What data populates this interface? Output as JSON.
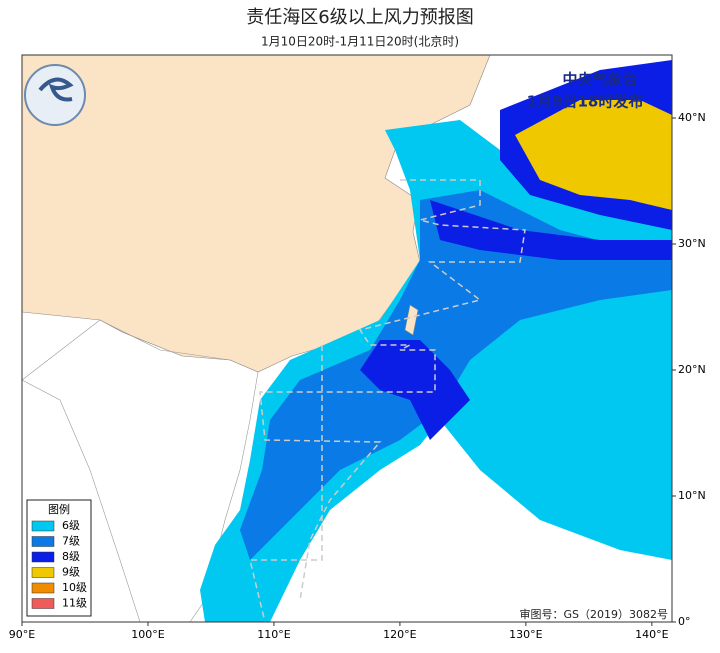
{
  "title": "责任海区6级以上风力预报图",
  "subtitle": "1月10日20时-1月11日20时(北京时)",
  "issuer": "中央气象台",
  "issued": "1月9日18时发布",
  "approval": "审图号：GS（2019）3082号",
  "map": {
    "xlim": [
      90,
      141.6
    ],
    "ylim": [
      0,
      45
    ],
    "lon_ticks": [
      {
        "value": 90,
        "label": "90°E"
      },
      {
        "value": 100,
        "label": "100°E"
      },
      {
        "value": 110,
        "label": "110°E"
      },
      {
        "value": 120,
        "label": "120°E"
      },
      {
        "value": 130,
        "label": "130°E"
      },
      {
        "value": 140,
        "label": "140°E"
      }
    ],
    "lat_ticks": [
      {
        "value": 0,
        "label": "0°"
      },
      {
        "value": 10,
        "label": "10°N"
      },
      {
        "value": 20,
        "label": "20°N"
      },
      {
        "value": 30,
        "label": "30°N"
      },
      {
        "value": 40,
        "label": "40°N"
      }
    ]
  },
  "legend": {
    "title": "图例",
    "items": [
      {
        "label": "6级",
        "color": "#00c8f0"
      },
      {
        "label": "7级",
        "color": "#0a7ae6"
      },
      {
        "label": "8级",
        "color": "#0a1ee6"
      },
      {
        "label": "9级",
        "color": "#f0c800"
      },
      {
        "label": "10级",
        "color": "#f08c00"
      },
      {
        "label": "11级",
        "color": "#f05a5a"
      }
    ]
  }
}
